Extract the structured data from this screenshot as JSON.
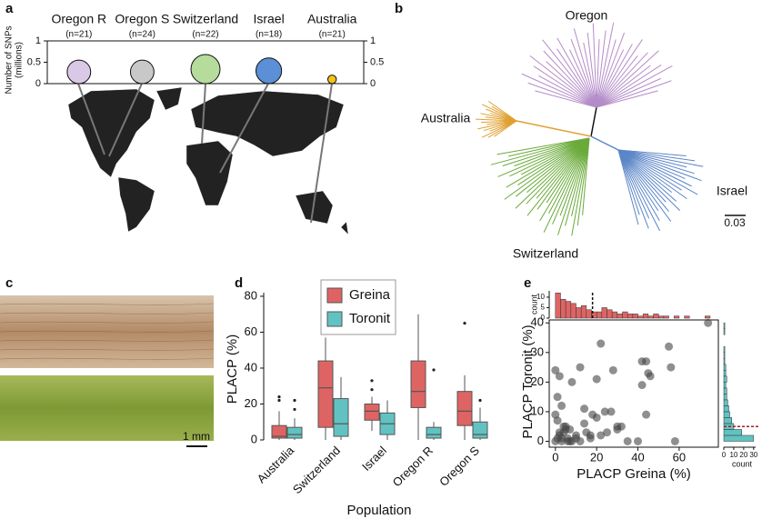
{
  "panel_labels": [
    "a",
    "b",
    "c",
    "d",
    "e"
  ],
  "tree": {
    "labels": [
      "Oregon",
      "Australia",
      "Israel",
      "Switzerland"
    ],
    "scale_bar": "0.03"
  },
  "photo": {
    "scale_bar": "1 mm"
  },
  "chart_data": [
    {
      "type": "bubble",
      "categories": [
        "Oregon R",
        "Oregon S",
        "Switzerland",
        "Israel",
        "Australia"
      ],
      "sample_sizes": [
        "(n=21)",
        "(n=24)",
        "(n=22)",
        "(n=18)",
        "(n=21)"
      ],
      "values": [
        0.55,
        0.55,
        0.68,
        0.6,
        0.2
      ],
      "colors": [
        "#d9c8e6",
        "#c8c8c8",
        "#b5dc9a",
        "#5b8fd6",
        "#f2c318"
      ],
      "ylabel_lines": [
        "Number of SNPs",
        "(millions)"
      ],
      "ylim": [
        0,
        1
      ],
      "yticks": [
        0,
        0.5,
        1
      ],
      "y2lim": [
        0,
        1
      ],
      "y2ticks": [
        0,
        0.5,
        1
      ]
    },
    {
      "type": "box",
      "categories": [
        "Australia",
        "Switzerland",
        "Israel",
        "Oregon R",
        "Oregon S"
      ],
      "series": [
        {
          "name": "Greina",
          "color": "#de6464",
          "values": [
            [
              0,
              1,
              2,
              8,
              16
            ],
            [
              0,
              7,
              29,
              44,
              57
            ],
            [
              5,
              11,
              16,
              20,
              24
            ],
            [
              0,
              18,
              27,
              44,
              70
            ],
            [
              0,
              8,
              16,
              27,
              36
            ]
          ],
          "outliers": [
            [
              22,
              24
            ],
            [],
            [
              28,
              33
            ],
            [],
            [
              65
            ]
          ]
        },
        {
          "name": "Toronit",
          "color": "#62c2c2",
          "values": [
            [
              0,
              1,
              3,
              7,
              12
            ],
            [
              0,
              2,
              9,
              23,
              35
            ],
            [
              0,
              3,
              9,
              15,
              22
            ],
            [
              0,
              1,
              3,
              7,
              10
            ],
            [
              0,
              1,
              3,
              10,
              18
            ]
          ],
          "outliers": [
            [
              17,
              22
            ],
            [],
            [],
            [
              39
            ],
            [
              22
            ]
          ]
        }
      ],
      "ylim": [
        0,
        82
      ],
      "yticks": [
        0,
        20,
        40,
        60,
        80
      ],
      "ylabel": "PLACP (%)",
      "xlabel": "Population"
    },
    {
      "type": "scatter",
      "color": "#444444",
      "x": [
        0,
        1,
        2,
        3,
        4,
        5,
        6,
        7,
        8,
        10,
        12,
        14,
        15,
        17,
        18,
        20,
        22,
        25,
        27,
        30,
        35,
        40,
        42,
        44,
        45,
        46,
        55,
        58,
        0,
        2,
        4,
        6,
        1,
        3,
        5,
        8,
        10,
        12,
        20,
        22,
        24,
        30,
        42,
        44,
        56,
        74,
        0,
        1,
        3,
        14,
        28,
        32,
        17,
        7,
        2
      ],
      "y": [
        0,
        1,
        2,
        0,
        3,
        5,
        1,
        4,
        0,
        2,
        0,
        6,
        3,
        1,
        9,
        8,
        2,
        3,
        10,
        4,
        0,
        0,
        19,
        27,
        23,
        22,
        32,
        0,
        24,
        22,
        5,
        0,
        15,
        12,
        4,
        20,
        1,
        25,
        21,
        33,
        10,
        5,
        27,
        9,
        25,
        40,
        9,
        7,
        1,
        11,
        24,
        5,
        2,
        0,
        3
      ],
      "xlim": [
        -3,
        79
      ],
      "ylim": [
        -2,
        41
      ],
      "xticks": [
        0,
        20,
        40,
        60
      ],
      "yticks": [
        0,
        10,
        20,
        30,
        40
      ],
      "xlabel": "PLACP Greina (%)",
      "ylabel": "PLACP Toronit (%)",
      "top_hist": {
        "color": "#de6464",
        "ylabel": "count",
        "ylim": [
          0,
          13
        ],
        "yticks": [
          0,
          5,
          10
        ],
        "mean": 18,
        "bins": [
          0,
          2.5,
          5,
          7.5,
          10,
          12.5,
          15,
          17.5,
          20,
          22.5,
          25,
          27.5,
          30,
          32.5,
          35,
          37.5,
          40,
          42.5,
          45,
          47.5,
          50,
          52.5,
          55,
          57.5,
          60,
          62.5,
          65,
          67.5,
          70,
          72.5,
          75
        ],
        "counts": [
          12,
          9,
          8,
          7,
          5,
          6,
          4,
          3,
          3,
          5,
          4,
          3,
          2,
          3,
          2,
          2,
          1,
          2,
          1,
          2,
          1,
          1,
          0,
          1,
          0,
          1,
          0,
          0,
          0,
          1
        ]
      },
      "right_hist": {
        "color": "#62c2c2",
        "xlabel": "count",
        "xlim": [
          0,
          32
        ],
        "xticks": [
          0,
          10,
          20,
          30
        ],
        "mean": 5,
        "bins": [
          0,
          2,
          4,
          6,
          8,
          10,
          12,
          14,
          16,
          18,
          20,
          22,
          24,
          26,
          28,
          30,
          32,
          34,
          36,
          38,
          40
        ],
        "counts": [
          30,
          18,
          10,
          8,
          6,
          5,
          4,
          3,
          3,
          2,
          3,
          2,
          2,
          1,
          1,
          1,
          0,
          0,
          1,
          1
        ]
      }
    }
  ]
}
